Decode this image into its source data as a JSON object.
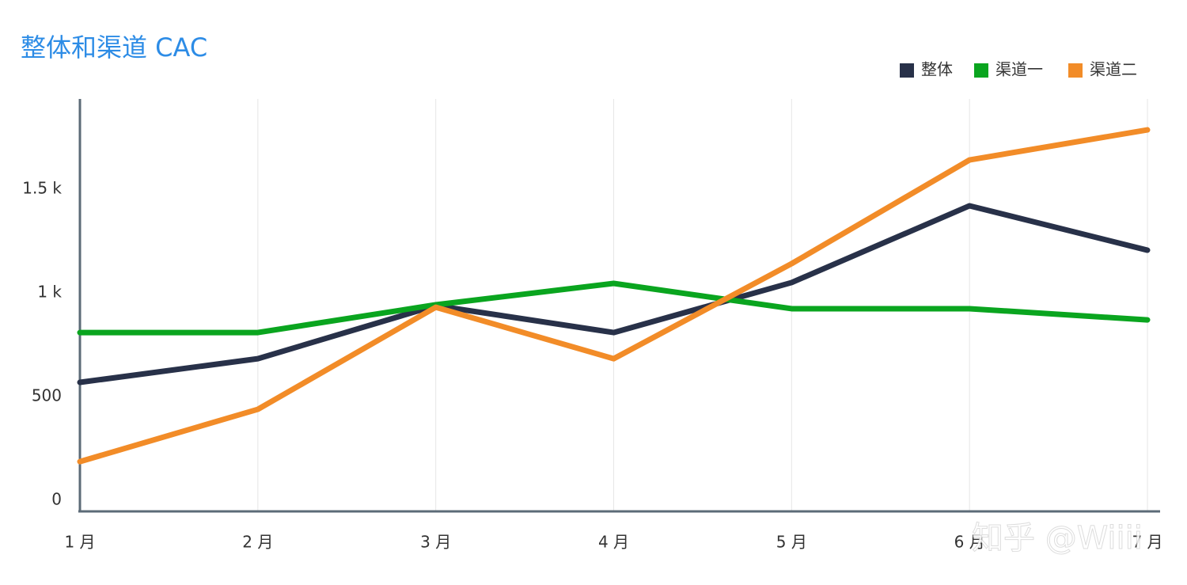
{
  "chart_data": {
    "type": "line",
    "title": "整体和渠道 CAC",
    "categories": [
      "1 月",
      "2 月",
      "3 月",
      "4 月",
      "5 月",
      "6 月",
      "7 月"
    ],
    "series": [
      {
        "name": "整体",
        "color": "#283149",
        "values": [
          569,
          683,
          939,
          809,
          1050,
          1420,
          1206
        ]
      },
      {
        "name": "渠道一",
        "color": "#0aa51f",
        "values": [
          809,
          809,
          943,
          1046,
          924,
          924,
          870
        ]
      },
      {
        "name": "渠道二",
        "color": "#f28c28",
        "values": [
          187,
          439,
          931,
          683,
          1141,
          1641,
          1786
        ]
      }
    ],
    "ylim": [
      -53,
      1935
    ],
    "yticks": [
      0,
      500,
      {
        "value": 1000,
        "label": "1 k"
      },
      {
        "value": 1500,
        "label": "1.5 k"
      }
    ],
    "grid": true,
    "legend": "top-right",
    "watermark": "知乎 @Wiiii"
  }
}
